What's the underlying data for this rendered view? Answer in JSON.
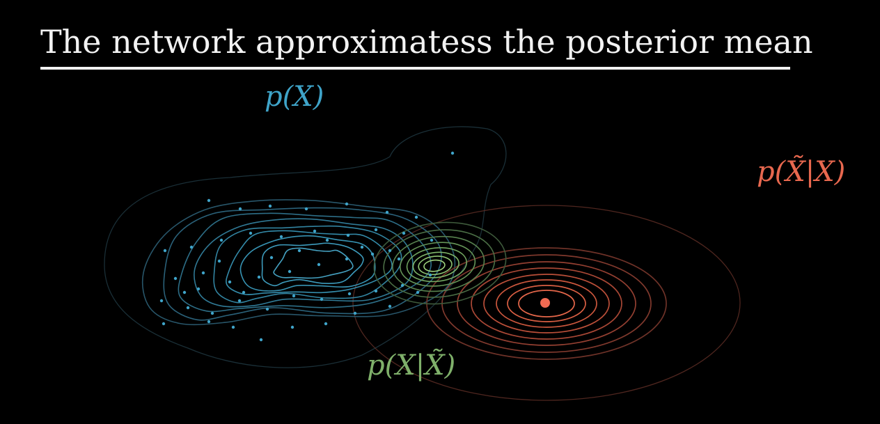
{
  "title": "The network approximatess the posterior mean",
  "labels": {
    "prior": "p(X)",
    "likelihood": "p(X̃|X)",
    "posterior": "p(X|X̃)"
  },
  "colors": {
    "background": "#000000",
    "title": "#f2f2f2",
    "prior": "#3fa4c9",
    "likelihood": "#e8684f",
    "posterior": "#7fb06a"
  }
}
